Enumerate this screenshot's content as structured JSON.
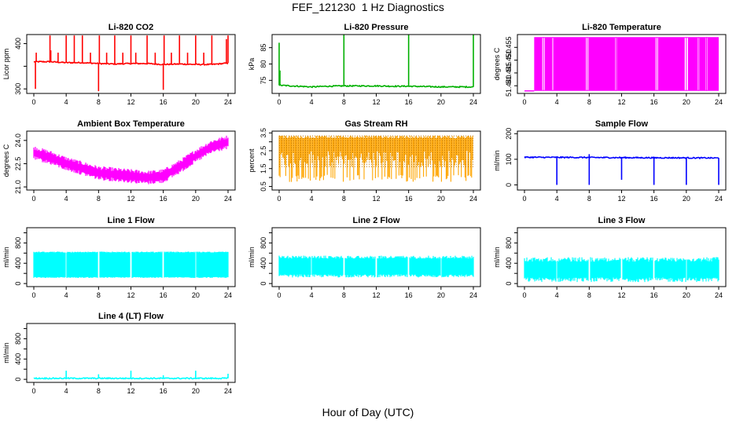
{
  "figure": {
    "title": "FEF_121230  1 Hz Diagnostics",
    "common_xlabel": "Hour of Day (UTC)"
  },
  "chart_data": [
    {
      "id": "co2",
      "type": "line",
      "title": "Li-820 CO2",
      "ylabel": "Licor ppm",
      "xlim": [
        0,
        24
      ],
      "xticks": [
        0,
        4,
        8,
        12,
        16,
        20,
        24
      ],
      "ylim": [
        290,
        420
      ],
      "yticks": [
        300,
        350,
        400
      ],
      "yticklabels": [
        "300",
        "",
        "400"
      ],
      "color": "#ff0000",
      "series": [
        {
          "baseline": [
            [
              0,
              360
            ],
            [
              2,
              360
            ],
            [
              4,
              358
            ],
            [
              6,
              358
            ],
            [
              8,
              356
            ],
            [
              10,
              355
            ],
            [
              12,
              356
            ],
            [
              14,
              356
            ],
            [
              16,
              354
            ],
            [
              18,
              355
            ],
            [
              20,
              354
            ],
            [
              22,
              354
            ],
            [
              24,
              357
            ]
          ],
          "spikes": [
            [
              0.2,
              300
            ],
            [
              0.3,
              380
            ],
            [
              2,
              418
            ],
            [
              2.1,
              385
            ],
            [
              3,
              380
            ],
            [
              4,
              418
            ],
            [
              5,
              418
            ],
            [
              6,
              418
            ],
            [
              7,
              380
            ],
            [
              8,
              295
            ],
            [
              8.1,
              418
            ],
            [
              9,
              380
            ],
            [
              10,
              418
            ],
            [
              11,
              380
            ],
            [
              12,
              418
            ],
            [
              12.6,
              380
            ],
            [
              14,
              418
            ],
            [
              15,
              380
            ],
            [
              16,
              298
            ],
            [
              16.1,
              418
            ],
            [
              17,
              380
            ],
            [
              18,
              418
            ],
            [
              19,
              380
            ],
            [
              20,
              418
            ],
            [
              21,
              380
            ],
            [
              22,
              418
            ],
            [
              23.8,
              410
            ],
            [
              24,
              418
            ]
          ]
        }
      ]
    },
    {
      "id": "pressure",
      "type": "line",
      "title": "Li-820 Pressure",
      "ylabel": "kPa",
      "xlim": [
        0,
        24
      ],
      "xticks": [
        0,
        4,
        8,
        12,
        16,
        20,
        24
      ],
      "ylim": [
        71,
        89
      ],
      "yticks": [
        75,
        80,
        85
      ],
      "yticklabels": [
        "75",
        "80",
        "85"
      ],
      "color": "#00b000",
      "series": [
        {
          "baseline": [
            [
              0,
              73.5
            ],
            [
              4,
              73.0
            ],
            [
              6,
              73.2
            ],
            [
              8,
              73.3
            ],
            [
              10,
              73.3
            ],
            [
              12,
              73.3
            ],
            [
              14,
              73.2
            ],
            [
              16,
              73.2
            ],
            [
              18,
              73.1
            ],
            [
              20,
              73.0
            ],
            [
              22,
              73.0
            ],
            [
              24,
              73.0
            ]
          ],
          "spikes": [
            [
              0,
              86.5
            ],
            [
              0.1,
              78
            ],
            [
              8,
              89
            ],
            [
              16,
              89
            ],
            [
              24,
              89
            ]
          ]
        }
      ]
    },
    {
      "id": "licor_temp",
      "type": "line",
      "title": "Li-820 Temperature",
      "ylabel": "degrees C",
      "xlim": [
        0,
        24
      ],
      "xticks": [
        0,
        4,
        8,
        12,
        16,
        20,
        24
      ],
      "ylim": [
        51.437,
        51.46
      ],
      "yticks": [
        51.44,
        51.445,
        51.45,
        51.455
      ],
      "yticklabels": [
        "51.440",
        "51.445",
        "51.450",
        "51.455"
      ],
      "color": "#ff00ff",
      "series": [
        {
          "low": 51.438,
          "high": 51.459,
          "toggle_start": 1.2,
          "gaps": [
            [
              2.2,
              2.5
            ],
            [
              3.4,
              3.6
            ],
            [
              7.6,
              7.9
            ],
            [
              11.2,
              11.4
            ],
            [
              16.2,
              16.5
            ],
            [
              19.8,
              20.2
            ],
            [
              21.4,
              21.6
            ],
            [
              22.4,
              22.6
            ]
          ]
        }
      ]
    },
    {
      "id": "box_temp",
      "type": "band",
      "title": "Ambient Box Temperature",
      "ylabel": "degrees C",
      "xlim": [
        0,
        24
      ],
      "xticks": [
        0,
        4,
        8,
        12,
        16,
        20,
        24
      ],
      "ylim": [
        20.8,
        24.6
      ],
      "yticks": [
        21.0,
        22.5,
        24.0
      ],
      "yticklabels": [
        "21.0",
        "22.5",
        "24.0"
      ],
      "color": "#ff00ff",
      "series": [
        {
          "center": [
            [
              0,
              23.2
            ],
            [
              2,
              22.9
            ],
            [
              4,
              22.5
            ],
            [
              6,
              22.2
            ],
            [
              8,
              21.9
            ],
            [
              10,
              21.8
            ],
            [
              12,
              21.7
            ],
            [
              14,
              21.6
            ],
            [
              16,
              21.7
            ],
            [
              18,
              22.3
            ],
            [
              20,
              23.0
            ],
            [
              22,
              23.6
            ],
            [
              24,
              23.9
            ]
          ],
          "halfwidth": 0.35
        }
      ]
    },
    {
      "id": "rh",
      "type": "band",
      "title": "Gas Stream RH",
      "ylabel": "percent",
      "xlim": [
        0,
        24
      ],
      "xticks": [
        0,
        4,
        8,
        12,
        16,
        20,
        24
      ],
      "ylim": [
        0.3,
        3.6
      ],
      "yticks": [
        0.5,
        1.0,
        1.5,
        2.0,
        2.5,
        3.0,
        3.5
      ],
      "yticklabels": [
        "0.5",
        "",
        "1.5",
        "",
        "2.5",
        "",
        "3.5"
      ],
      "color": "#ffa500",
      "series": [
        {
          "upper": 3.35,
          "lower": 0.75,
          "dense_lower": 1.6
        }
      ]
    },
    {
      "id": "sample_flow",
      "type": "line",
      "title": "Sample Flow",
      "ylabel": "ml/min",
      "xlim": [
        0,
        24
      ],
      "xticks": [
        0,
        4,
        8,
        12,
        16,
        20,
        24
      ],
      "ylim": [
        -20,
        210
      ],
      "yticks": [
        0,
        100,
        200
      ],
      "yticklabels": [
        "0",
        "100",
        "200"
      ],
      "color": "#0000ff",
      "series": [
        {
          "baseline": [
            [
              0,
              108
            ],
            [
              24,
              105
            ]
          ],
          "spikes": [
            [
              4,
              0
            ],
            [
              8,
              0
            ],
            [
              12,
              20
            ],
            [
              16,
              0
            ],
            [
              20,
              0
            ],
            [
              24,
              0
            ],
            [
              8,
              120
            ]
          ]
        }
      ]
    },
    {
      "id": "line1",
      "type": "band",
      "title": "Line 1 Flow",
      "ylabel": "ml/min",
      "xlim": [
        0,
        24
      ],
      "xticks": [
        0,
        4,
        8,
        12,
        16,
        20,
        24
      ],
      "ylim": [
        -60,
        1100
      ],
      "yticks": [
        0,
        200,
        400,
        600,
        800,
        1000
      ],
      "yticklabels": [
        "0",
        "",
        "400",
        "",
        "800",
        ""
      ],
      "color": "#00ffff",
      "series": [
        {
          "upper": 630,
          "lower": 110,
          "gaps": [
            4,
            8,
            12,
            16,
            20
          ]
        }
      ]
    },
    {
      "id": "line2",
      "type": "band",
      "title": "Line 2 Flow",
      "ylabel": "ml/min",
      "xlim": [
        0,
        24
      ],
      "xticks": [
        0,
        4,
        8,
        12,
        16,
        20,
        24
      ],
      "ylim": [
        -60,
        1100
      ],
      "yticks": [
        0,
        200,
        400,
        600,
        800,
        1000
      ],
      "yticklabels": [
        "0",
        "",
        "400",
        "",
        "800",
        ""
      ],
      "color": "#00ffff",
      "series": [
        {
          "upper": 550,
          "lower": 120,
          "gaps": [
            4,
            8,
            12,
            16,
            20
          ]
        }
      ]
    },
    {
      "id": "line3",
      "type": "band",
      "title": "Line 3 Flow",
      "ylabel": "ml/min",
      "xlim": [
        0,
        24
      ],
      "xticks": [
        0,
        4,
        8,
        12,
        16,
        20,
        24
      ],
      "ylim": [
        -60,
        1100
      ],
      "yticks": [
        0,
        200,
        400,
        600,
        800,
        1000
      ],
      "yticklabels": [
        "0",
        "",
        "400",
        "",
        "800",
        ""
      ],
      "color": "#00ffff",
      "series": [
        {
          "upper": 520,
          "lower": 30,
          "gaps": [
            4,
            8,
            12,
            16,
            20
          ]
        }
      ]
    },
    {
      "id": "line4",
      "type": "line",
      "title": "Line 4 (LT) Flow",
      "ylabel": "ml/min",
      "xlim": [
        0,
        24
      ],
      "xticks": [
        0,
        4,
        8,
        12,
        16,
        20,
        24
      ],
      "ylim": [
        -60,
        1100
      ],
      "yticks": [
        0,
        200,
        400,
        600,
        800,
        1000
      ],
      "yticklabels": [
        "0",
        "",
        "400",
        "",
        "800",
        ""
      ],
      "color": "#00ffff",
      "series": [
        {
          "baseline": [
            [
              0,
              20
            ],
            [
              24,
              20
            ]
          ],
          "spikes": [
            [
              4,
              170
            ],
            [
              8,
              100
            ],
            [
              12,
              170
            ],
            [
              16,
              80
            ],
            [
              20,
              170
            ],
            [
              24,
              110
            ]
          ]
        }
      ]
    }
  ]
}
